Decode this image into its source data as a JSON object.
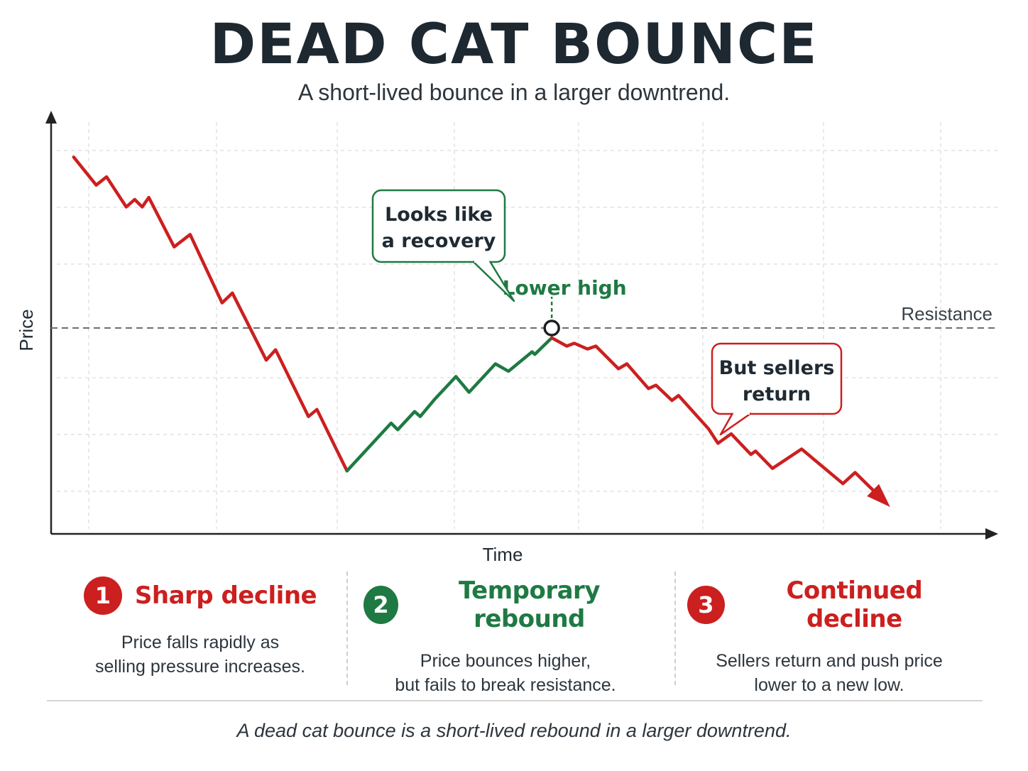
{
  "title": "DEAD CAT BOUNCE",
  "subtitle": "A short-lived bounce in a larger downtrend.",
  "chart_data": {
    "type": "line",
    "xlabel": "Time",
    "ylabel": "Price",
    "xlim": [
      0,
      100
    ],
    "ylim": [
      0,
      100
    ],
    "grid": true,
    "resistance": {
      "label": "Resistance",
      "y": 50
    },
    "series": [
      {
        "color": "#cc1f1f",
        "points": [
          [
            2.4,
            91.5
          ],
          [
            4.8,
            84.7
          ],
          [
            5.9,
            86.7
          ],
          [
            8.0,
            79.4
          ],
          [
            8.9,
            81.2
          ],
          [
            9.7,
            79.4
          ],
          [
            10.4,
            81.7
          ],
          [
            13.1,
            69.7
          ],
          [
            14.8,
            72.7
          ],
          [
            18.2,
            56.1
          ],
          [
            19.3,
            58.5
          ],
          [
            22.9,
            42.2
          ],
          [
            23.9,
            44.7
          ],
          [
            27.4,
            28.5
          ],
          [
            28.3,
            30.2
          ],
          [
            31.5,
            15.3
          ]
        ]
      },
      {
        "color": "#1e7a42",
        "points": [
          [
            31.5,
            15.3
          ],
          [
            36.2,
            26.9
          ],
          [
            36.9,
            25.3
          ],
          [
            38.7,
            29.7
          ],
          [
            39.3,
            28.5
          ],
          [
            40.8,
            32.6
          ],
          [
            43.1,
            38.2
          ],
          [
            44.5,
            34.4
          ],
          [
            47.3,
            41.3
          ],
          [
            48.7,
            39.5
          ],
          [
            51.2,
            44.2
          ],
          [
            51.5,
            43.6
          ],
          [
            53.3,
            47.6
          ]
        ]
      },
      {
        "color": "#cc1f1f",
        "points": [
          [
            53.3,
            47.6
          ],
          [
            54.9,
            45.6
          ],
          [
            55.7,
            46.3
          ],
          [
            57.1,
            44.9
          ],
          [
            58.0,
            45.6
          ],
          [
            60.4,
            40.1
          ],
          [
            61.3,
            41.3
          ],
          [
            63.6,
            35.3
          ],
          [
            64.4,
            36.1
          ],
          [
            66.1,
            32.4
          ],
          [
            66.8,
            33.6
          ],
          [
            70.0,
            25.5
          ],
          [
            71.0,
            22.0
          ],
          [
            72.4,
            24.3
          ],
          [
            74.5,
            19.3
          ],
          [
            75.0,
            20.1
          ],
          [
            76.8,
            15.9
          ],
          [
            79.9,
            20.6
          ],
          [
            84.3,
            12.2
          ],
          [
            85.6,
            14.9
          ],
          [
            88.9,
            7.5
          ]
        ]
      }
    ],
    "annotations": [
      {
        "text": "Looks like\na recovery",
        "color": "#1e7a42",
        "style": "callout"
      },
      {
        "text": "Lower high",
        "color": "#1e7a42",
        "style": "label",
        "x": 53.3,
        "y": 50
      },
      {
        "text": "But sellers\nreturn",
        "color": "#cc1f1f",
        "style": "callout"
      }
    ]
  },
  "steps": [
    {
      "number": "1",
      "title": "Sharp decline",
      "color": "#cc1f1f",
      "description": "Price falls rapidly as\nselling pressure increases."
    },
    {
      "number": "2",
      "title": "Temporary rebound",
      "color": "#1e7a42",
      "description": "Price bounces higher,\nbut fails to break resistance."
    },
    {
      "number": "3",
      "title": "Continued decline",
      "color": "#cc1f1f",
      "description": "Sellers return and push price\nlower to a new low."
    }
  ],
  "footer": "A dead cat bounce is a short-lived rebound in a larger downtrend."
}
